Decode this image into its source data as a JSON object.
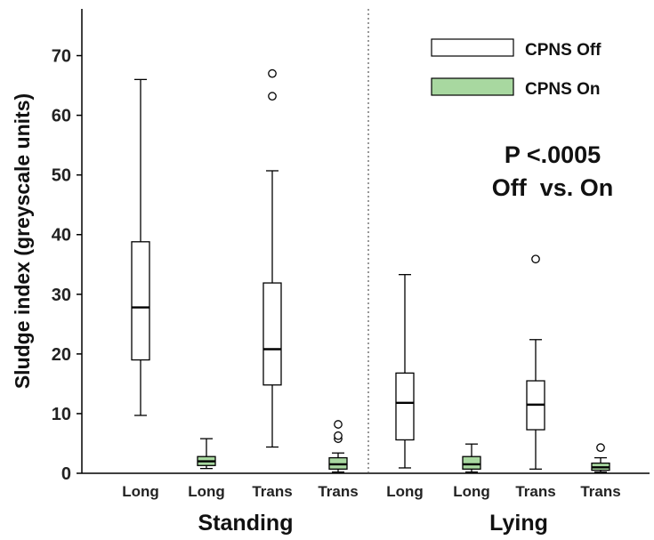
{
  "chart_data": {
    "type": "box",
    "ylabel": "Sludge index (greyscale units)",
    "ylim": [
      0,
      75
    ],
    "yticks": [
      0,
      10,
      20,
      30,
      40,
      50,
      60,
      70
    ],
    "groups": [
      "Standing",
      "Lying"
    ],
    "categories": [
      "Long",
      "Long",
      "Trans",
      "Trans",
      "Long",
      "Long",
      "Trans",
      "Trans"
    ],
    "legend": {
      "placement": "top-right",
      "entries": [
        {
          "label": "CPNS Off",
          "color": "#ffffff"
        },
        {
          "label": "CPNS On",
          "color": "#a8d8a0"
        }
      ]
    },
    "annotation": [
      "P <.0005",
      "Off  vs. On"
    ],
    "grid": false,
    "boxes": [
      {
        "group": "Standing",
        "category": "Long",
        "series": "CPNS Off",
        "whisker_low": 9.7,
        "q1": 19.0,
        "median": 27.8,
        "q3": 38.8,
        "whisker_high": 66.0,
        "outliers": []
      },
      {
        "group": "Standing",
        "category": "Long",
        "series": "CPNS On",
        "whisker_low": 0.8,
        "q1": 1.3,
        "median": 2.0,
        "q3": 2.8,
        "whisker_high": 5.8,
        "outliers": []
      },
      {
        "group": "Standing",
        "category": "Trans",
        "series": "CPNS Off",
        "whisker_low": 4.4,
        "q1": 14.8,
        "median": 20.8,
        "q3": 31.9,
        "whisker_high": 50.7,
        "outliers": [
          63.2,
          67.0
        ]
      },
      {
        "group": "Standing",
        "category": "Trans",
        "series": "CPNS On",
        "whisker_low": 0.2,
        "q1": 0.7,
        "median": 1.5,
        "q3": 2.6,
        "whisker_high": 3.4,
        "outliers": [
          5.8,
          6.3,
          8.2
        ]
      },
      {
        "group": "Lying",
        "category": "Long",
        "series": "CPNS Off",
        "whisker_low": 0.9,
        "q1": 5.6,
        "median": 11.8,
        "q3": 16.8,
        "whisker_high": 33.3,
        "outliers": []
      },
      {
        "group": "Lying",
        "category": "Long",
        "series": "CPNS On",
        "whisker_low": 0.2,
        "q1": 0.7,
        "median": 1.5,
        "q3": 2.8,
        "whisker_high": 4.9,
        "outliers": []
      },
      {
        "group": "Lying",
        "category": "Trans",
        "series": "CPNS Off",
        "whisker_low": 0.7,
        "q1": 7.3,
        "median": 11.5,
        "q3": 15.5,
        "whisker_high": 22.4,
        "outliers": [
          35.9
        ]
      },
      {
        "group": "Lying",
        "category": "Trans",
        "series": "CPNS On",
        "whisker_low": 0.2,
        "q1": 0.5,
        "median": 1.0,
        "q3": 1.7,
        "whisker_high": 2.6,
        "outliers": [
          4.3
        ]
      }
    ]
  }
}
